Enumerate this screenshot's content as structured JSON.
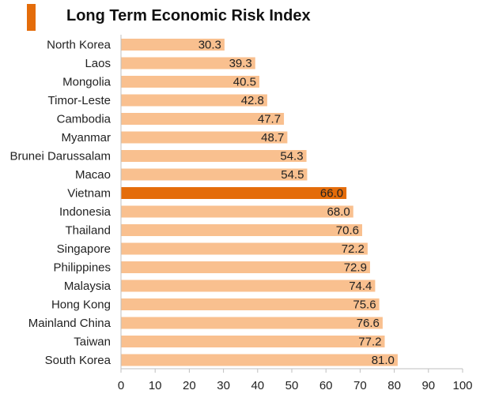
{
  "colors": {
    "bar": "#f9c08f",
    "highlight": "#e46c0a",
    "accent": "#e46c0a",
    "axis": "#bfbfbf"
  },
  "chart_data": {
    "type": "bar",
    "orientation": "horizontal",
    "title": "Long Term Economic Risk Index",
    "categories": [
      "North Korea",
      "Laos",
      "Mongolia",
      "Timor-Leste",
      "Cambodia",
      "Myanmar",
      "Brunei Darussalam",
      "Macao",
      "Vietnam",
      "Indonesia",
      "Thailand",
      "Singapore",
      "Philippines",
      "Malaysia",
      "Hong Kong",
      "Mainland China",
      "Taiwan",
      "South Korea"
    ],
    "values": [
      30.3,
      39.3,
      40.5,
      42.8,
      47.7,
      48.7,
      54.3,
      54.5,
      66.0,
      68.0,
      70.6,
      72.2,
      72.9,
      74.4,
      75.6,
      76.6,
      77.2,
      81.0
    ],
    "value_labels": [
      "30.3",
      "39.3",
      "40.5",
      "42.8",
      "47.7",
      "48.7",
      "54.3",
      "54.5",
      "66.0",
      "68.0",
      "70.6",
      "72.2",
      "72.9",
      "74.4",
      "75.6",
      "76.6",
      "77.2",
      "81.0"
    ],
    "highlight": "Vietnam",
    "xlim": [
      0,
      100
    ],
    "xticks": [
      "0",
      "10",
      "20",
      "30",
      "40",
      "50",
      "60",
      "70",
      "80",
      "90",
      "100"
    ],
    "xlabel": "",
    "ylabel": "",
    "grid": false
  }
}
